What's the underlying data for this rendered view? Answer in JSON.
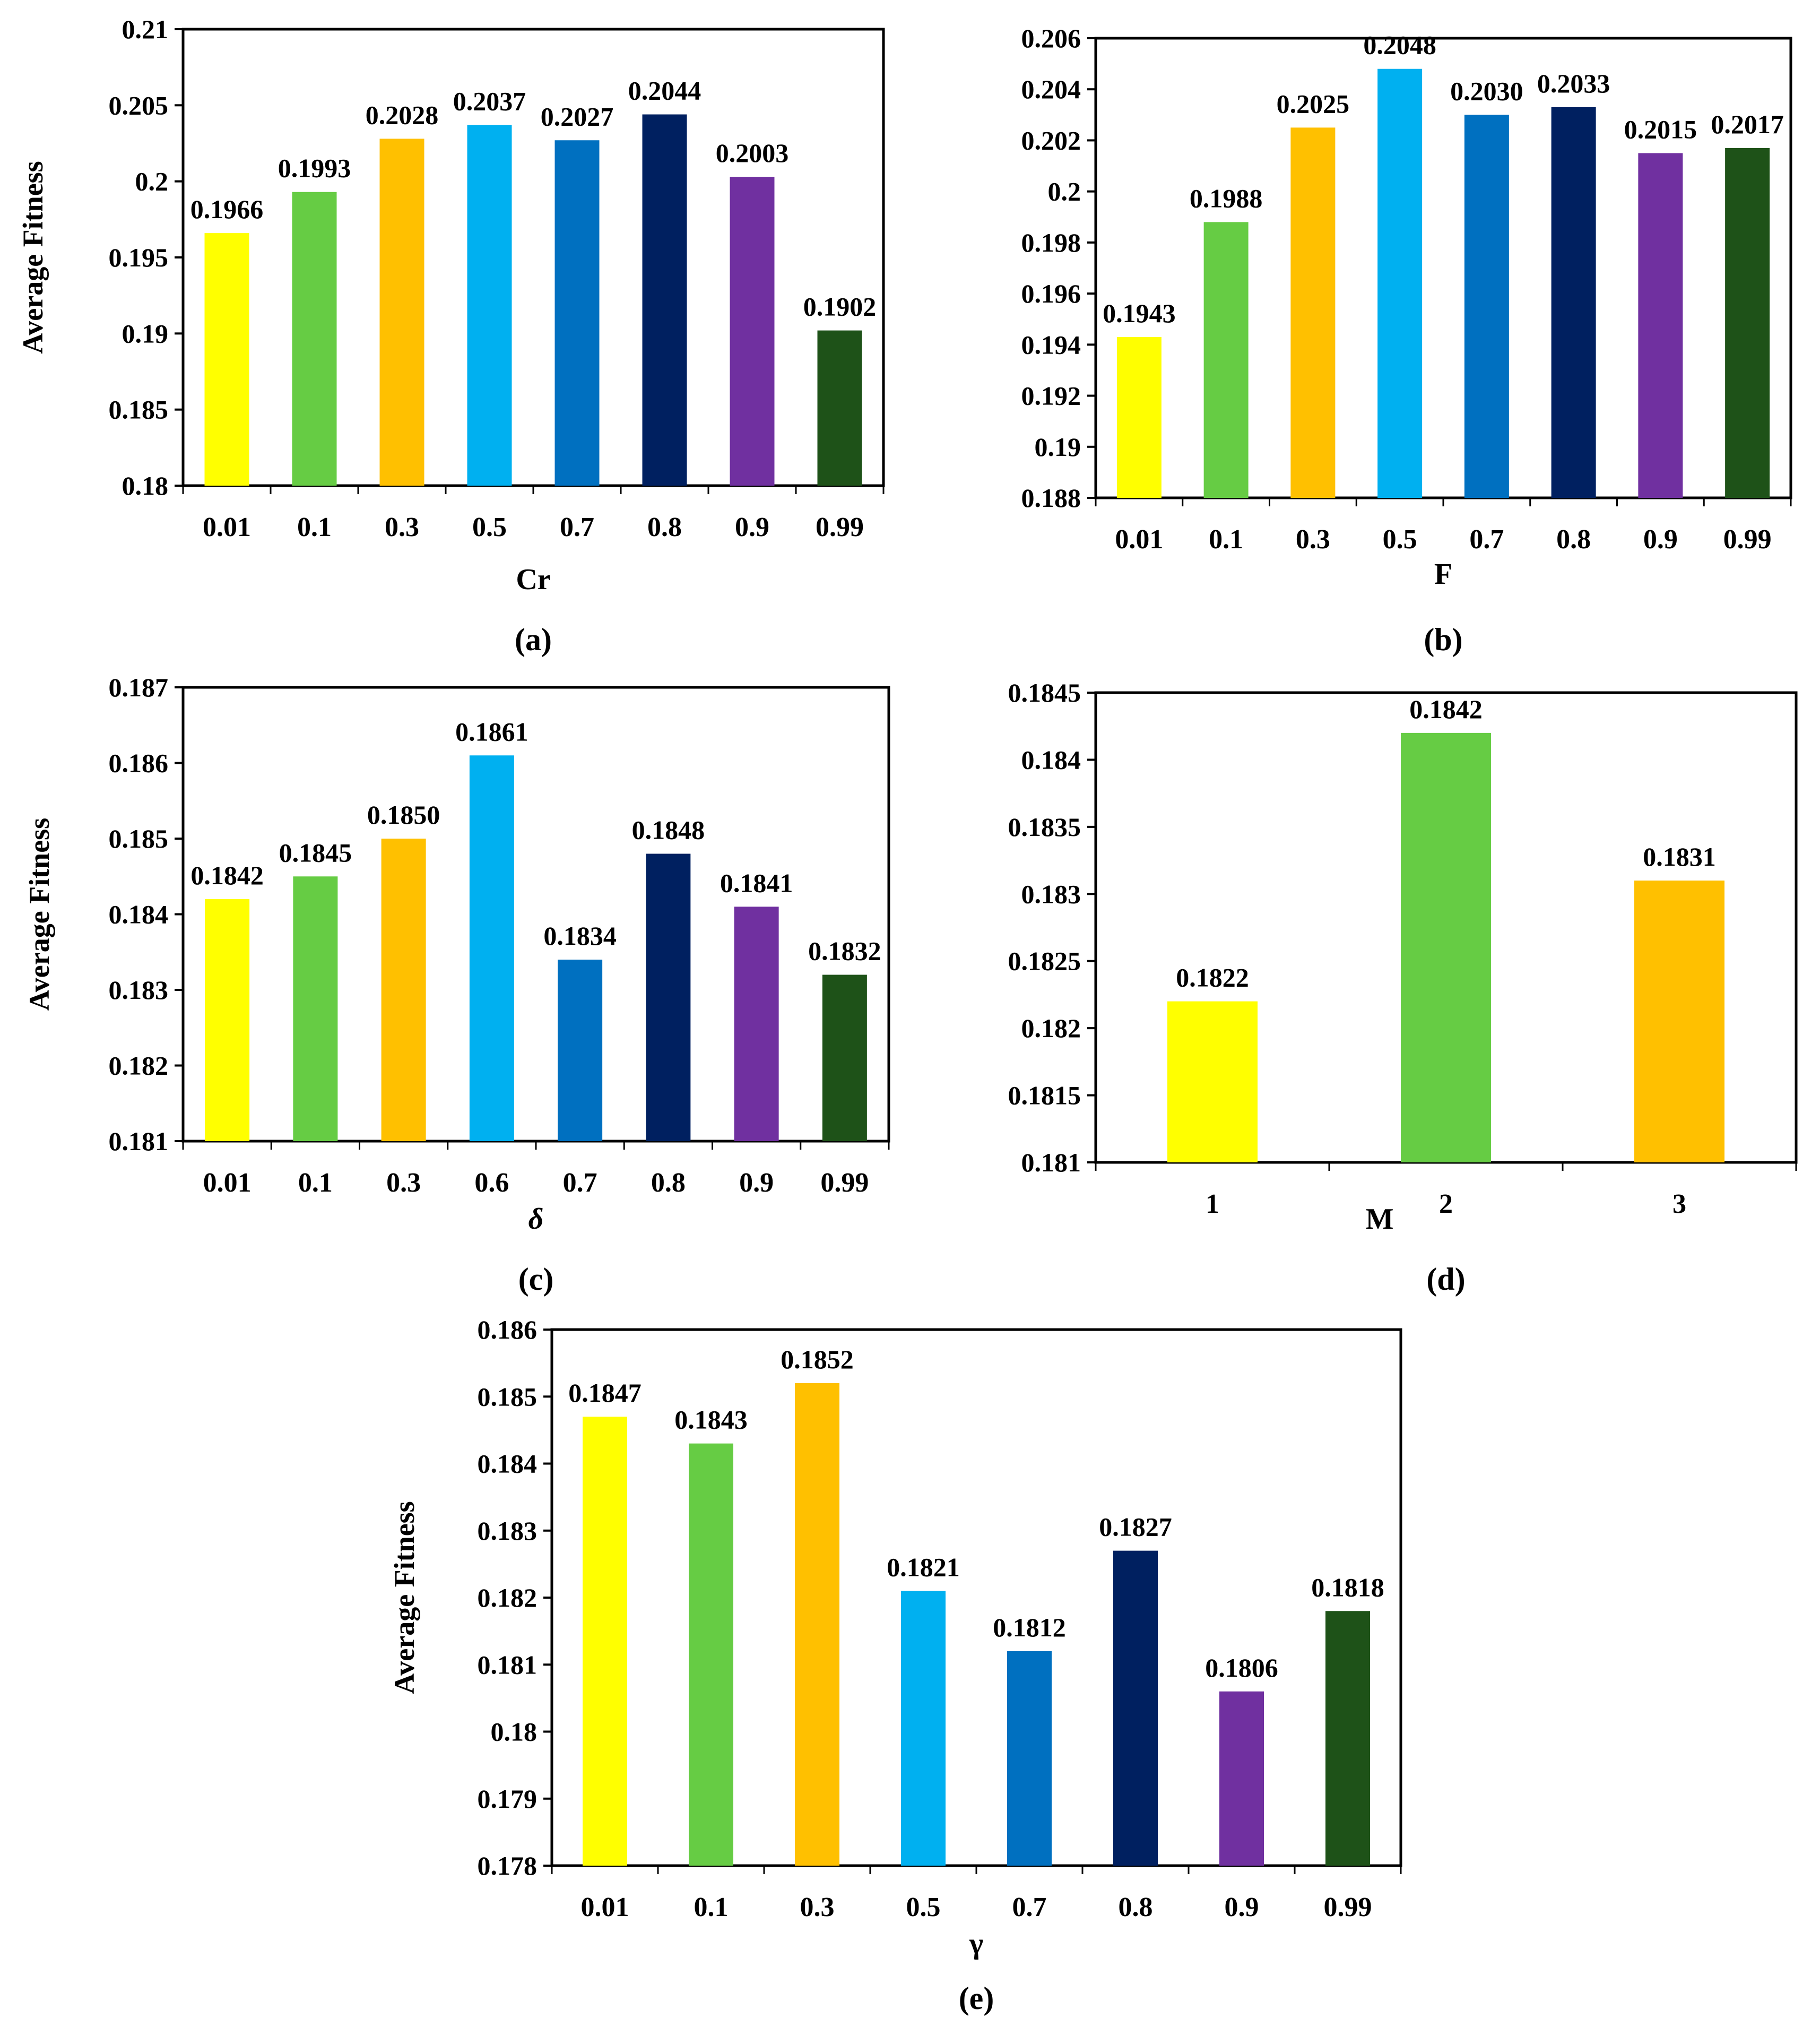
{
  "colors": [
    "#ffff00",
    "#66cc44",
    "#ffc000",
    "#00b0f0",
    "#0070c0",
    "#002060",
    "#7030a0",
    "#1e5218"
  ],
  "chart_data": [
    {
      "type": "bar",
      "title": "",
      "caption": "(a)",
      "xlabel": "Cr",
      "ylabel": "Average Fitness",
      "categories": [
        "0.01",
        "0.1",
        "0.3",
        "0.5",
        "0.7",
        "0.8",
        "0.9",
        "0.99"
      ],
      "values": [
        0.1966,
        0.1993,
        0.2028,
        0.2037,
        0.2027,
        0.2044,
        0.2003,
        0.1902
      ],
      "value_labels": [
        "0.1966",
        "0.1993",
        "0.2028",
        "0.2037",
        "0.2027",
        "0.2044",
        "0.2003",
        "0.1902"
      ],
      "ylim": [
        0.18,
        0.21
      ],
      "yticks": [
        0.18,
        0.185,
        0.19,
        0.195,
        0.2,
        0.205,
        0.21
      ],
      "ytick_labels": [
        "0.18",
        "0.185",
        "0.19",
        "0.195",
        "0.2",
        "0.205",
        "0.21"
      ],
      "grid": false,
      "legend": "none"
    },
    {
      "type": "bar",
      "title": "",
      "caption": "(b)",
      "xlabel": "F",
      "ylabel": "",
      "categories": [
        "0.01",
        "0.1",
        "0.3",
        "0.5",
        "0.7",
        "0.8",
        "0.9",
        "0.99"
      ],
      "values": [
        0.1943,
        0.1988,
        0.2025,
        0.2048,
        0.203,
        0.2033,
        0.2015,
        0.2017
      ],
      "value_labels": [
        "0.1943",
        "0.1988",
        "0.2025",
        "0.2048",
        "0.2030",
        "0.2033",
        "0.2015",
        "0.2017"
      ],
      "ylim": [
        0.188,
        0.206
      ],
      "yticks": [
        0.188,
        0.19,
        0.192,
        0.194,
        0.196,
        0.198,
        0.2,
        0.202,
        0.204,
        0.206
      ],
      "ytick_labels": [
        "0.188",
        "0.19",
        "0.192",
        "0.194",
        "0.196",
        "0.198",
        "0.2",
        "0.202",
        "0.204",
        "0.206"
      ],
      "grid": false,
      "legend": "none"
    },
    {
      "type": "bar",
      "title": "",
      "caption": "(c)",
      "xlabel": "δ",
      "ylabel": "Average Fitness",
      "categories": [
        "0.01",
        "0.1",
        "0.3",
        "0.6",
        "0.7",
        "0.8",
        "0.9",
        "0.99"
      ],
      "values": [
        0.1842,
        0.1845,
        0.185,
        0.1861,
        0.1834,
        0.1848,
        0.1841,
        0.1832
      ],
      "value_labels": [
        "0.1842",
        "0.1845",
        "0.1850",
        "0.1861",
        "0.1834",
        "0.1848",
        "0.1841",
        "0.1832"
      ],
      "ylim": [
        0.181,
        0.187
      ],
      "yticks": [
        0.181,
        0.182,
        0.183,
        0.184,
        0.185,
        0.186,
        0.187
      ],
      "ytick_labels": [
        "0.181",
        "0.182",
        "0.183",
        "0.184",
        "0.185",
        "0.186",
        "0.187"
      ],
      "grid": false,
      "legend": "none"
    },
    {
      "type": "bar",
      "title": "",
      "caption": "(d)",
      "xlabel": "M",
      "ylabel": "",
      "categories": [
        "1",
        "2",
        "3"
      ],
      "values": [
        0.1822,
        0.1842,
        0.1831
      ],
      "value_labels": [
        "0.1822",
        "0.1842",
        "0.1831"
      ],
      "ylim": [
        0.181,
        0.1845
      ],
      "yticks": [
        0.181,
        0.1815,
        0.182,
        0.1825,
        0.183,
        0.1835,
        0.184,
        0.1845
      ],
      "ytick_labels": [
        "0.181",
        "0.1815",
        "0.182",
        "0.1825",
        "0.183",
        "0.1835",
        "0.184",
        "0.1845"
      ],
      "grid": false,
      "legend": "none"
    },
    {
      "type": "bar",
      "title": "",
      "caption": "(e)",
      "xlabel": "γ",
      "ylabel": "Average Fitness",
      "categories": [
        "0.01",
        "0.1",
        "0.3",
        "0.5",
        "0.7",
        "0.8",
        "0.9",
        "0.99"
      ],
      "values": [
        0.1847,
        0.1843,
        0.1852,
        0.1821,
        0.1812,
        0.1827,
        0.1806,
        0.1818
      ],
      "value_labels": [
        "0.1847",
        "0.1843",
        "0.1852",
        "0.1821",
        "0.1812",
        "0.1827",
        "0.1806",
        "0.1818"
      ],
      "ylim": [
        0.178,
        0.186
      ],
      "yticks": [
        0.178,
        0.179,
        0.18,
        0.181,
        0.182,
        0.183,
        0.184,
        0.185,
        0.186
      ],
      "ytick_labels": [
        "0.178",
        "0.179",
        "0.18",
        "0.181",
        "0.182",
        "0.183",
        "0.184",
        "0.185",
        "0.186"
      ],
      "grid": false,
      "legend": "none"
    }
  ]
}
